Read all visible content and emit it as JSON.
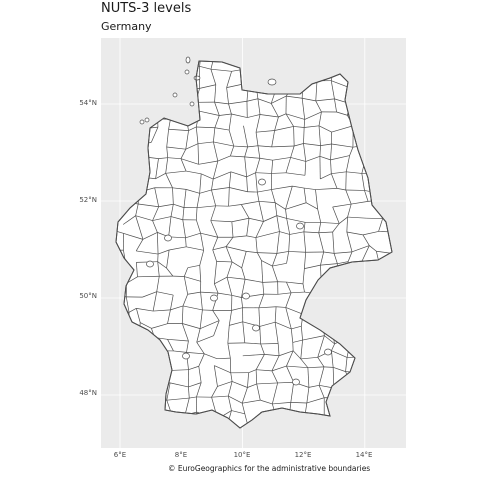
{
  "map": {
    "title": "NUTS-3 levels",
    "subtitle": "Germany",
    "caption": "© EuroGeographics for the administrative boundaries",
    "country": "Germany",
    "level": "NUTS-3",
    "graticule": true,
    "lat_ticks": [
      "54°N",
      "52°N",
      "50°N",
      "48°N"
    ],
    "lon_ticks": [
      "6°E",
      "8°E",
      "10°E",
      "12°E",
      "14°E"
    ],
    "lat_values": [
      54,
      52,
      50,
      48
    ],
    "lon_values": [
      6,
      8,
      10,
      12,
      14
    ],
    "lat_range": [
      47.0,
      55.4
    ],
    "lon_range": [
      5.5,
      15.4
    ],
    "colors": {
      "panel": "#ebebeb",
      "grid": "#ffffff",
      "region_fill": "#ffffff",
      "region_stroke": "#4d4d4d"
    }
  }
}
